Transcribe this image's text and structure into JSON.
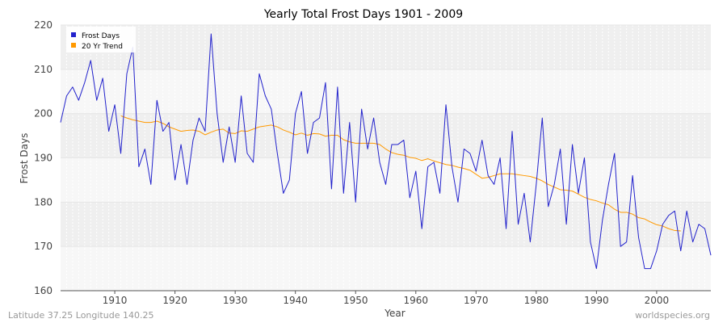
{
  "chart_data": {
    "type": "line",
    "title": "Yearly Total Frost Days 1901 - 2009",
    "xlabel": "Year",
    "ylabel": "Frost Days",
    "xlim": [
      1901,
      2009
    ],
    "ylim": [
      160,
      220
    ],
    "x_ticks": [
      1910,
      1920,
      1930,
      1940,
      1950,
      1960,
      1970,
      1980,
      1990,
      2000
    ],
    "y_ticks": [
      160,
      170,
      180,
      190,
      200,
      210,
      220
    ],
    "grid": true,
    "legend_position": "top-left",
    "series": [
      {
        "name": "Frost Days",
        "color": "#2222cc",
        "x_start": 1901,
        "values": [
          198,
          204,
          206,
          203,
          207,
          212,
          203,
          208,
          196,
          202,
          191,
          209,
          215,
          188,
          192,
          184,
          203,
          196,
          198,
          185,
          193,
          184,
          194,
          199,
          196,
          218,
          200,
          189,
          197,
          189,
          204,
          191,
          189,
          209,
          204,
          201,
          191,
          182,
          185,
          200,
          205,
          191,
          198,
          199,
          207,
          183,
          206,
          182,
          198,
          180,
          201,
          192,
          199,
          189,
          184,
          193,
          193,
          194,
          181,
          187,
          174,
          188,
          189,
          182,
          202,
          188,
          180,
          192,
          191,
          187,
          194,
          186,
          184,
          190,
          174,
          196,
          175,
          182,
          171,
          184,
          199,
          179,
          184,
          192,
          175,
          193,
          182,
          190,
          171,
          165,
          176,
          184,
          191,
          170,
          171,
          186,
          172,
          165,
          165,
          169,
          175,
          177,
          178,
          169,
          178,
          171,
          175,
          174,
          168
        ]
      },
      {
        "name": "20 Yr Trend",
        "color": "#ff9900",
        "x_start": 1911,
        "values": [
          199.5,
          199.0,
          198.6,
          198.3,
          198.0,
          198.0,
          198.3,
          197.8,
          197.0,
          196.5,
          196.0,
          196.2,
          196.3,
          196.0,
          195.2,
          195.8,
          196.3,
          196.5,
          195.6,
          195.5,
          196.1,
          196.0,
          196.5,
          197.0,
          197.2,
          197.4,
          197.0,
          196.3,
          195.8,
          195.2,
          195.6,
          195.1,
          195.5,
          195.4,
          194.9,
          195.1,
          195.1,
          194.1,
          193.6,
          193.3,
          193.3,
          193.3,
          193.3,
          193.0,
          192.0,
          191.2,
          190.8,
          190.6,
          190.1,
          189.9,
          189.4,
          189.8,
          189.3,
          188.9,
          188.5,
          188.3,
          187.9,
          187.6,
          187.2,
          186.3,
          185.4,
          185.6,
          186.0,
          186.4,
          186.4,
          186.4,
          186.2,
          186.0,
          185.8,
          185.4,
          184.8,
          184.0,
          183.4,
          182.8,
          182.7,
          182.5,
          181.8,
          181.1,
          180.6,
          180.3,
          179.8,
          179.4,
          178.4,
          177.7,
          177.7,
          177.3,
          176.5,
          176.2,
          175.5,
          174.9,
          174.6,
          174.0,
          173.6,
          173.5
        ]
      }
    ]
  },
  "footer": {
    "left": "Latitude 37.25 Longitude 140.25",
    "right": "worldspecies.org"
  }
}
